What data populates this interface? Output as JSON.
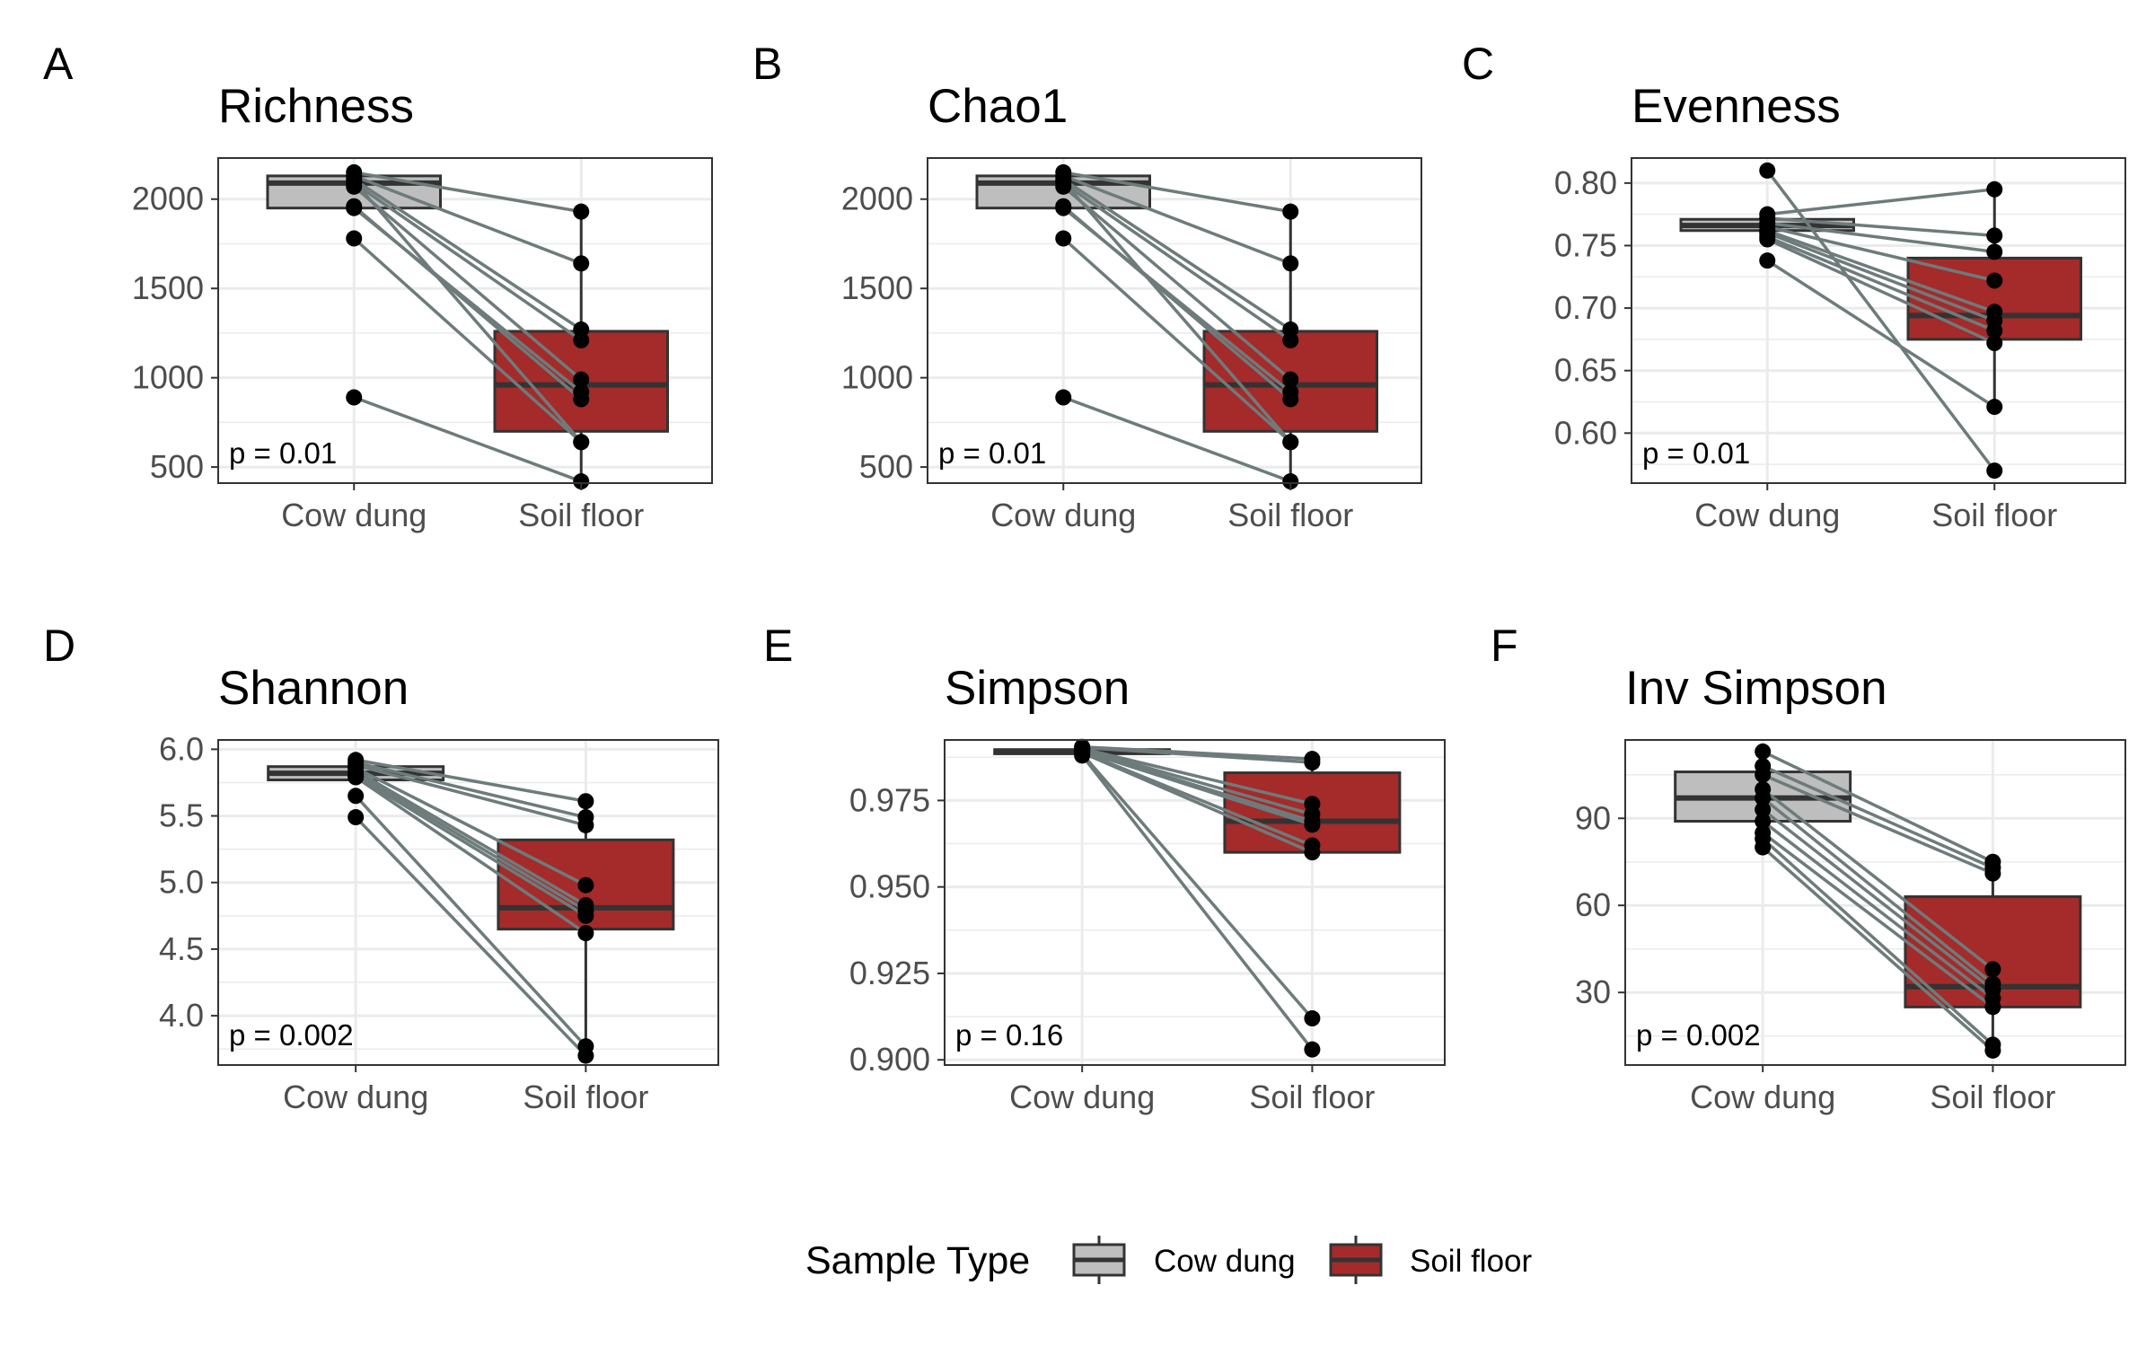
{
  "chart_data": [
    {
      "type": "box",
      "panel_label": "A",
      "title": "Richness",
      "categories": [
        "Cow dung",
        "Soil floor"
      ],
      "yticks": [
        500,
        1000,
        1500,
        2000
      ],
      "ylim": [
        410,
        2230
      ],
      "boxes": [
        {
          "category": "Cow dung",
          "q1": 1950,
          "median": 2090,
          "q3": 2130,
          "whisker_low": 1950,
          "whisker_high": 2130
        },
        {
          "category": "Soil floor",
          "q1": 700,
          "median": 960,
          "q3": 1260,
          "whisker_low": 420,
          "whisker_high": 1930
        }
      ],
      "pairs": [
        [
          2150,
          1930
        ],
        [
          2130,
          1640
        ],
        [
          2110,
          1270
        ],
        [
          2090,
          1210
        ],
        [
          2070,
          990
        ],
        [
          1950,
          920
        ],
        [
          1960,
          880
        ],
        [
          2100,
          640
        ],
        [
          1780,
          640
        ],
        [
          890,
          420
        ]
      ],
      "p_value": "p = 0.01"
    },
    {
      "type": "box",
      "panel_label": "B",
      "title": "Chao1",
      "categories": [
        "Cow dung",
        "Soil floor"
      ],
      "yticks": [
        500,
        1000,
        1500,
        2000
      ],
      "ylim": [
        410,
        2230
      ],
      "boxes": [
        {
          "category": "Cow dung",
          "q1": 1950,
          "median": 2090,
          "q3": 2130,
          "whisker_low": 1950,
          "whisker_high": 2130
        },
        {
          "category": "Soil floor",
          "q1": 700,
          "median": 960,
          "q3": 1260,
          "whisker_low": 420,
          "whisker_high": 1930
        }
      ],
      "pairs": [
        [
          2150,
          1930
        ],
        [
          2130,
          1640
        ],
        [
          2110,
          1270
        ],
        [
          2090,
          1210
        ],
        [
          2070,
          990
        ],
        [
          1950,
          920
        ],
        [
          1960,
          880
        ],
        [
          2100,
          640
        ],
        [
          1780,
          640
        ],
        [
          890,
          420
        ]
      ],
      "p_value": "p = 0.01"
    },
    {
      "type": "box",
      "panel_label": "C",
      "title": "Evenness",
      "categories": [
        "Cow dung",
        "Soil floor"
      ],
      "yticks": [
        0.6,
        0.65,
        0.7,
        0.75,
        0.8
      ],
      "ytick_labels": [
        "0.60",
        "0.65",
        "0.70",
        "0.75",
        "0.80"
      ],
      "ylim": [
        0.56,
        0.82
      ],
      "boxes": [
        {
          "category": "Cow dung",
          "q1": 0.762,
          "median": 0.766,
          "q3": 0.771,
          "whisker_low": 0.755,
          "whisker_high": 0.776
        },
        {
          "category": "Soil floor",
          "q1": 0.675,
          "median": 0.694,
          "q3": 0.74,
          "whisker_low": 0.62,
          "whisker_high": 0.795
        }
      ],
      "pairs": [
        [
          0.81,
          0.57
        ],
        [
          0.775,
          0.795
        ],
        [
          0.772,
          0.758
        ],
        [
          0.768,
          0.745
        ],
        [
          0.765,
          0.722
        ],
        [
          0.762,
          0.697
        ],
        [
          0.76,
          0.69
        ],
        [
          0.757,
          0.682
        ],
        [
          0.755,
          0.672
        ],
        [
          0.738,
          0.621
        ]
      ],
      "p_value": "p = 0.01"
    },
    {
      "type": "box",
      "panel_label": "D",
      "title": "Shannon",
      "categories": [
        "Cow dung",
        "Soil floor"
      ],
      "yticks": [
        4.0,
        4.5,
        5.0,
        5.5,
        6.0
      ],
      "ytick_labels": [
        "4.0",
        "4.5",
        "5.0",
        "5.5",
        "6.0"
      ],
      "ylim": [
        3.63,
        6.07
      ],
      "boxes": [
        {
          "category": "Cow dung",
          "q1": 5.77,
          "median": 5.82,
          "q3": 5.87,
          "whisker_low": 5.77,
          "whisker_high": 5.87
        },
        {
          "category": "Soil floor",
          "q1": 4.65,
          "median": 4.81,
          "q3": 5.32,
          "whisker_low": 3.7,
          "whisker_high": 5.61
        }
      ],
      "pairs": [
        [
          5.92,
          5.61
        ],
        [
          5.9,
          5.49
        ],
        [
          5.88,
          5.43
        ],
        [
          5.86,
          4.98
        ],
        [
          5.84,
          4.83
        ],
        [
          5.82,
          4.79
        ],
        [
          5.8,
          4.75
        ],
        [
          5.79,
          4.62
        ],
        [
          5.65,
          3.77
        ],
        [
          5.49,
          3.7
        ]
      ],
      "p_value": "p = 0.002"
    },
    {
      "type": "box",
      "panel_label": "E",
      "title": "Simpson",
      "categories": [
        "Cow dung",
        "Soil floor"
      ],
      "yticks": [
        0.9,
        0.925,
        0.95,
        0.975
      ],
      "ytick_labels": [
        "0.900",
        "0.925",
        "0.950",
        "0.975"
      ],
      "ylim": [
        0.8985,
        0.9925
      ],
      "boxes": [
        {
          "category": "Cow dung",
          "q1": 0.9885,
          "median": 0.9893,
          "q3": 0.9897,
          "whisker_low": 0.988,
          "whisker_high": 0.99
        },
        {
          "category": "Soil floor",
          "q1": 0.96,
          "median": 0.969,
          "q3": 0.983,
          "whisker_low": 0.96,
          "whisker_high": 0.987
        }
      ],
      "pairs": [
        [
          0.9905,
          0.987
        ],
        [
          0.9903,
          0.986
        ],
        [
          0.99,
          0.974
        ],
        [
          0.9898,
          0.971
        ],
        [
          0.9895,
          0.969
        ],
        [
          0.9893,
          0.968
        ],
        [
          0.989,
          0.962
        ],
        [
          0.9888,
          0.96
        ],
        [
          0.9885,
          0.912
        ],
        [
          0.988,
          0.903
        ]
      ],
      "p_value": "p = 0.16"
    },
    {
      "type": "box",
      "panel_label": "F",
      "title": "Inv Simpson",
      "categories": [
        "Cow dung",
        "Soil floor"
      ],
      "yticks": [
        30,
        60,
        90
      ],
      "ylim": [
        5,
        117
      ],
      "boxes": [
        {
          "category": "Cow dung",
          "q1": 89,
          "median": 97,
          "q3": 106,
          "whisker_low": 80,
          "whisker_high": 113
        },
        {
          "category": "Soil floor",
          "q1": 25,
          "median": 32,
          "q3": 63,
          "whisker_low": 10,
          "whisker_high": 75
        }
      ],
      "pairs": [
        [
          113,
          75
        ],
        [
          108,
          73
        ],
        [
          105,
          71
        ],
        [
          100,
          38
        ],
        [
          97,
          33
        ],
        [
          93,
          31
        ],
        [
          89,
          28
        ],
        [
          85,
          25
        ],
        [
          83,
          12
        ],
        [
          80,
          10
        ]
      ],
      "p_value": "p = 0.002"
    }
  ],
  "legend": {
    "title": "Sample Type",
    "items": [
      {
        "label": "Cow dung",
        "color": "#bebebe"
      },
      {
        "label": "Soil floor",
        "color": "#a52a2a"
      }
    ]
  },
  "colors": {
    "cow_dung_fill": "#bebebe",
    "soil_floor_fill": "#a52a2a",
    "box_stroke": "#333333",
    "pair_line": "#6e7b7b",
    "point": "#000000",
    "grid": "#ebebeb",
    "panel_border": "#333333"
  }
}
